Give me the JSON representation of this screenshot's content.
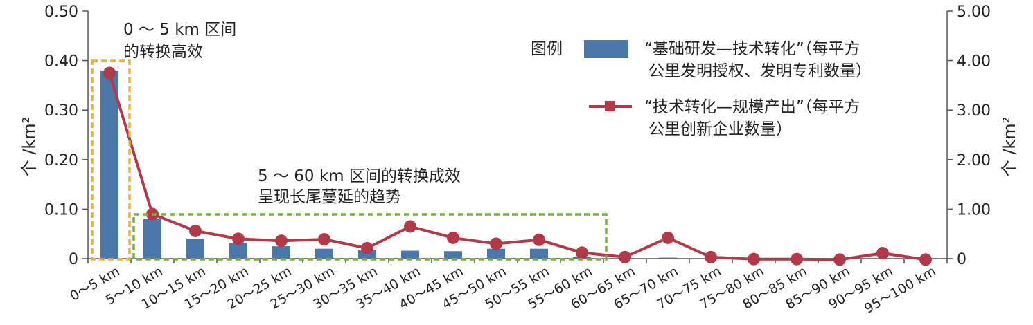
{
  "chart_data": {
    "type": "bar",
    "categories": [
      "0～5 km",
      "5～10 km",
      "10～15 km",
      "15～20 km",
      "20～25 km",
      "25～30 km",
      "30～35 km",
      "35～40 km",
      "40～45 km",
      "45～50 km",
      "50～55 km",
      "55～60 km",
      "60～65 km",
      "65～70 km",
      "70～75 km",
      "75～80 km",
      "80～85 km",
      "85～90 km",
      "90～95 km",
      "95～100 km"
    ],
    "series": [
      {
        "name": "“基础研发—技术转化”（每平方公里发明授权、发明专利数量）",
        "type": "bar",
        "axis": "left",
        "color": "#4a76a8",
        "values": [
          0.38,
          0.08,
          0.04,
          0.031,
          0.025,
          0.02,
          0.017,
          0.016,
          0.015,
          0.02,
          0.02,
          0.003,
          0.001,
          0.002,
          0.0,
          0.0,
          0.0,
          0.0,
          0.0,
          0.0
        ]
      },
      {
        "name": "“技术转化—规模产出”（每平方公里创新企业数量）",
        "type": "line",
        "axis": "right",
        "color": "#b23a48",
        "values": [
          3.75,
          0.9,
          0.56,
          0.4,
          0.36,
          0.39,
          0.21,
          0.65,
          0.42,
          0.3,
          0.38,
          0.12,
          0.03,
          0.42,
          0.03,
          -0.01,
          -0.01,
          -0.02,
          0.11,
          -0.02
        ]
      }
    ],
    "y_left": {
      "label": "个 /km²",
      "ylim": [
        0,
        0.5
      ],
      "ticks": [
        "0",
        "0.10",
        "0.20",
        "0.30",
        "0.40",
        "0.50"
      ]
    },
    "y_right": {
      "label": "个 /km²",
      "ylim": [
        0,
        5
      ],
      "ticks": [
        "0",
        "1.00",
        "2.00",
        "3.00",
        "4.00",
        "5.00"
      ]
    },
    "legend": {
      "title": "图例",
      "placement": "top-right",
      "items": [
        {
          "lines": [
            "“基础研发—技术转化”（每平方",
            "公里发明授权、发明专利数量）"
          ]
        },
        {
          "lines": [
            "“技术转化—规模产出”（每平方",
            "公里创新企业数量）"
          ]
        }
      ]
    },
    "annotations": [
      {
        "lines": [
          "0 ～ 5 km 区间",
          "的转换高效"
        ],
        "color": "#f0b030",
        "range_categories": [
          0,
          0
        ]
      },
      {
        "lines": [
          "5 ～ 60 km 区间的转换成效",
          "呈现长尾蔓延的趋势"
        ],
        "color": "#78b040",
        "range_categories": [
          1,
          11
        ]
      }
    ]
  }
}
